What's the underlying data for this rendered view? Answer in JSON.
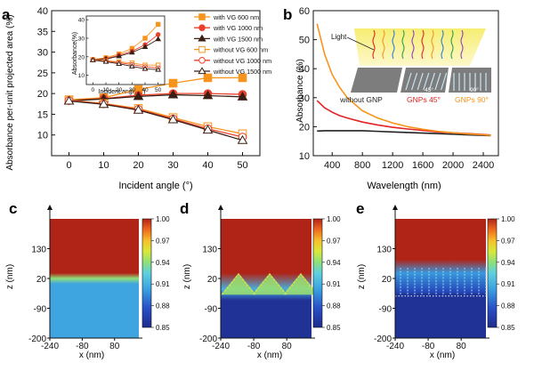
{
  "panel_labels": [
    "a",
    "b",
    "c",
    "d",
    "e"
  ],
  "chart_data": [
    {
      "panel": "a",
      "type": "line",
      "xlabel": "Incident angle (°)",
      "ylabel": "Absorbance per-unit projected area (%)",
      "xlim": [
        -5,
        55
      ],
      "ylim": [
        5,
        40
      ],
      "xticks": [
        0,
        10,
        20,
        30,
        40,
        50
      ],
      "yticks": [
        10,
        15,
        20,
        25,
        30,
        35,
        40
      ],
      "x": [
        0,
        10,
        20,
        30,
        40,
        50
      ],
      "legend_position": "top-right",
      "series": [
        {
          "name": "with VG 600 nm",
          "color": "#f7941d",
          "marker": "square-filled",
          "values": [
            18.5,
            19.0,
            21.0,
            22.5,
            23.8,
            23.8
          ]
        },
        {
          "name": "with VG 1000 nm",
          "color": "#e8402a",
          "marker": "circle-filled",
          "values": [
            18.3,
            18.8,
            19.6,
            20.0,
            20.0,
            19.8
          ]
        },
        {
          "name": "with VG 1500 nm",
          "color": "#3a1f14",
          "marker": "triangle-filled",
          "values": [
            18.2,
            18.7,
            19.3,
            19.7,
            19.5,
            19.2
          ]
        },
        {
          "name": "without VG 600 nm",
          "color": "#f7941d",
          "marker": "square-open",
          "values": [
            18.4,
            17.6,
            16.4,
            14.2,
            12.0,
            10.3
          ]
        },
        {
          "name": "without VG 1000 nm",
          "color": "#e8402a",
          "marker": "circle-open",
          "values": [
            18.3,
            17.5,
            16.2,
            13.9,
            11.5,
            9.5
          ]
        },
        {
          "name": "without VG 1500 nm",
          "color": "#3a1f14",
          "marker": "triangle-open",
          "values": [
            18.2,
            17.4,
            16.0,
            13.7,
            11.2,
            8.7
          ]
        }
      ],
      "inset": {
        "xlabel": "Incident angle (°)",
        "ylabel": "Absorbance(%)",
        "xlim": [
          -5,
          55
        ],
        "ylim": [
          5,
          42
        ],
        "xticks": [
          0,
          10,
          20,
          30,
          40,
          50
        ],
        "yticks": [
          10,
          20,
          30,
          40
        ],
        "x": [
          0,
          10,
          20,
          30,
          40,
          50
        ],
        "series": [
          {
            "color": "#f7941d",
            "marker": "square-filled",
            "values": [
              18.5,
              19.5,
              21.5,
              24.5,
              30.0,
              37.5
            ]
          },
          {
            "color": "#e8402a",
            "marker": "circle-filled",
            "values": [
              18.3,
              19.0,
              20.8,
              23.0,
              26.5,
              32.0
            ]
          },
          {
            "color": "#3a1f14",
            "marker": "triangle-filled",
            "values": [
              18.2,
              18.8,
              20.3,
              22.3,
              25.3,
              29.5
            ]
          },
          {
            "color": "#f7941d",
            "marker": "square-open",
            "values": [
              18.4,
              17.8,
              17.3,
              16.6,
              15.5,
              15.5
            ]
          },
          {
            "color": "#e8402a",
            "marker": "circle-open",
            "values": [
              18.3,
              17.6,
              16.8,
              15.8,
              14.6,
              14.0
            ]
          },
          {
            "color": "#3a1f14",
            "marker": "triangle-open",
            "values": [
              18.2,
              17.3,
              16.2,
              14.8,
              13.5,
              13.0
            ]
          }
        ]
      }
    },
    {
      "panel": "b",
      "type": "line",
      "xlabel": "Wavelength (nm)",
      "ylabel": "Absorbance (%)",
      "xlim": [
        150,
        2600
      ],
      "ylim": [
        10,
        60
      ],
      "xticks": [
        400,
        800,
        1200,
        1600,
        2000,
        2400
      ],
      "yticks": [
        10,
        20,
        30,
        40,
        50,
        60
      ],
      "x": [
        200,
        300,
        400,
        500,
        600,
        800,
        1000,
        1200,
        1400,
        1600,
        1800,
        2000,
        2200,
        2400,
        2500
      ],
      "series": [
        {
          "name": "without GNP",
          "color": "#222222",
          "values": [
            18.5,
            18.6,
            18.6,
            18.6,
            18.6,
            18.6,
            18.4,
            18.2,
            18.0,
            17.8,
            17.6,
            17.4,
            17.2,
            17.0,
            16.9
          ]
        },
        {
          "name": "GNPs 45°",
          "color": "#e32222",
          "values": [
            29.0,
            26.5,
            25.0,
            23.8,
            23.0,
            21.6,
            20.6,
            19.8,
            19.2,
            18.7,
            18.2,
            17.9,
            17.6,
            17.3,
            17.1
          ]
        },
        {
          "name": "GNPs 90°",
          "color": "#f7941d",
          "values": [
            55.5,
            45.0,
            38.0,
            33.5,
            30.0,
            25.5,
            23.0,
            21.3,
            20.0,
            19.1,
            18.4,
            17.9,
            17.5,
            17.2,
            17.0
          ]
        }
      ],
      "inset_labels": {
        "light": "Light",
        "angle_45": "45°",
        "angle_90": "90°"
      }
    },
    {
      "panel": "c",
      "type": "heatmap",
      "xlabel": "x (nm)",
      "ylabel": "z (nm)",
      "xticks": [
        -240,
        -80,
        80
      ],
      "yticks": [
        -200,
        -90,
        20,
        130
      ],
      "xlim": [
        -240,
        200
      ],
      "ylim": [
        -200,
        240
      ],
      "colorbar": {
        "ticks": [
          "0.85",
          "0.88",
          "0.91",
          "0.94",
          "0.97",
          "1.00"
        ],
        "min": 0.85,
        "max": 1.0
      },
      "profile": {
        "z": [
          -200,
          0,
          20,
          40,
          240
        ],
        "value": [
          0.905,
          0.905,
          0.94,
          1.0,
          1.0
        ]
      }
    },
    {
      "panel": "d",
      "type": "heatmap",
      "xlabel": "x (nm)",
      "ylabel": "z (nm)",
      "xticks": [
        -240,
        -80,
        80
      ],
      "yticks": [
        -200,
        -90,
        20,
        130
      ],
      "xlim": [
        -240,
        200
      ],
      "ylim": [
        -200,
        240
      ],
      "colorbar": {
        "ticks": [
          "0.85",
          "0.88",
          "0.91",
          "0.94",
          "0.97",
          "1.00"
        ],
        "min": 0.85,
        "max": 1.0
      },
      "profile": {
        "z": [
          -200,
          -60,
          -20,
          40,
          240
        ],
        "value": [
          0.855,
          0.855,
          0.91,
          1.0,
          1.0
        ]
      }
    },
    {
      "panel": "e",
      "type": "heatmap",
      "xlabel": "x (nm)",
      "ylabel": "z (nm)",
      "xticks": [
        -240,
        -80,
        80
      ],
      "yticks": [
        -200,
        -90,
        20,
        130
      ],
      "xlim": [
        -240,
        200
      ],
      "ylim": [
        -200,
        240
      ],
      "colorbar": {
        "ticks": [
          "0.85",
          "0.88",
          "0.91",
          "0.94",
          "0.97",
          "1.00"
        ],
        "min": 0.85,
        "max": 1.0
      },
      "profile": {
        "z": [
          -200,
          -40,
          -30,
          40,
          90,
          240
        ],
        "value": [
          0.855,
          0.855,
          0.87,
          0.9,
          1.0,
          1.0
        ]
      }
    }
  ]
}
